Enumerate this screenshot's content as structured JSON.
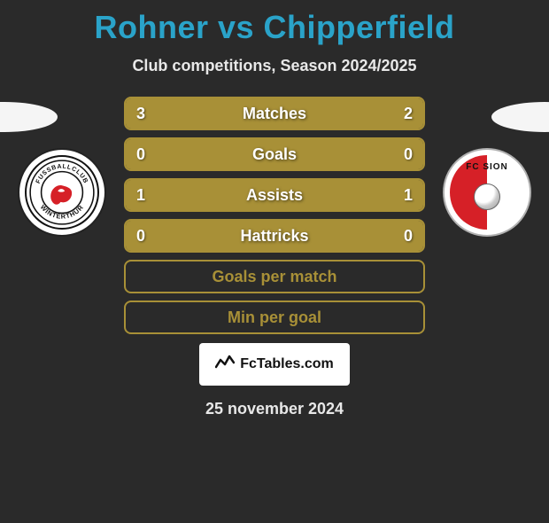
{
  "title": "Rohner vs Chipperfield",
  "subtitle": "Club competitions, Season 2024/2025",
  "date_text": "25 november 2024",
  "branding_text": "FcTables.com",
  "colors": {
    "background": "#2a2a2a",
    "title": "#2aa3c9",
    "bar_fill": "#a89037",
    "bar_border": "#a89037",
    "text_light": "#e8e8e8",
    "white": "#ffffff"
  },
  "left_club": {
    "name": "FC Winterthur",
    "ring_text_top": "FUSSBALLCLUB",
    "ring_text_bottom": "WINTERTHUR",
    "crest_primary": "#d62027"
  },
  "right_club": {
    "name": "FC Sion",
    "label": "FC SION",
    "half_color": "#d62027"
  },
  "rows": [
    {
      "label": "Matches",
      "left": "3",
      "right": "2",
      "lw": 60,
      "rw": 40
    },
    {
      "label": "Goals",
      "left": "0",
      "right": "0",
      "lw": 50,
      "rw": 50
    },
    {
      "label": "Assists",
      "left": "1",
      "right": "1",
      "lw": 50,
      "rw": 50
    },
    {
      "label": "Hattricks",
      "left": "0",
      "right": "0",
      "lw": 50,
      "rw": 50
    },
    {
      "label": "Goals per match",
      "left": "",
      "right": "",
      "lw": 0,
      "rw": 0
    },
    {
      "label": "Min per goal",
      "left": "",
      "right": "",
      "lw": 0,
      "rw": 0
    }
  ]
}
